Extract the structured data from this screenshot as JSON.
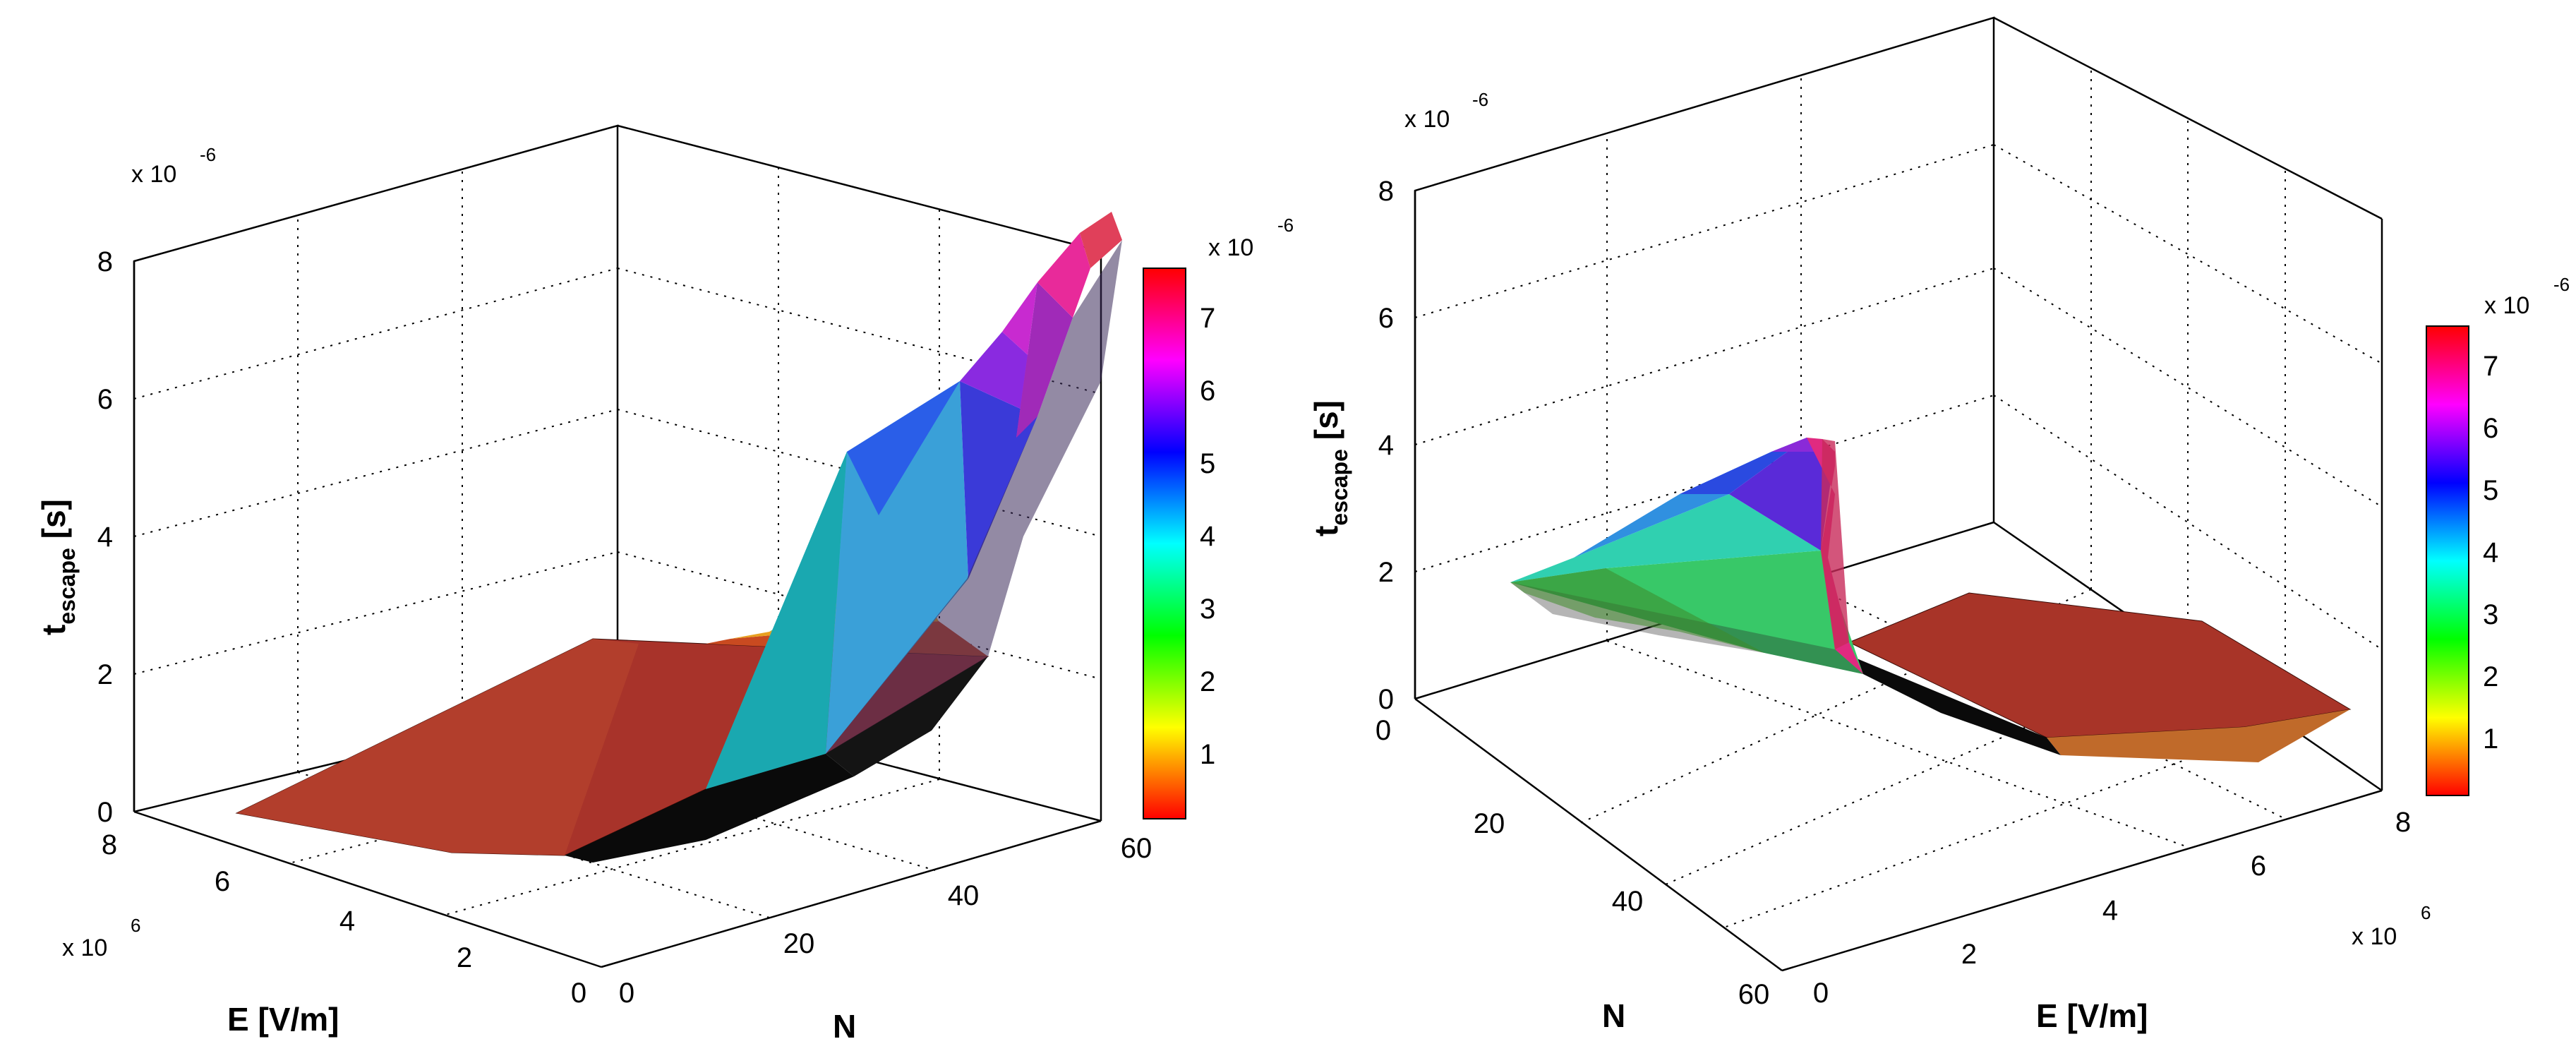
{
  "chart_data": [
    {
      "type": "surface3d",
      "view": "N axis toward front-right, E axis toward front-left",
      "xlabel": "N",
      "ylabel": "E [V/m]",
      "zlabel_main": "t",
      "zlabel_sub": "escape",
      "zlabel_unit": " [s]",
      "x_ticks": [
        "0",
        "20",
        "40",
        "60"
      ],
      "y_ticks": [
        "0",
        "2",
        "4",
        "6",
        "8"
      ],
      "z_ticks": [
        "0",
        "2",
        "4",
        "6",
        "8"
      ],
      "y_multiplier": {
        "base": "x 10",
        "exp": "6"
      },
      "z_multiplier": {
        "base": "x 10",
        "exp": "-6"
      },
      "xlim": [
        0,
        60
      ],
      "ylim": [
        0,
        8000000
      ],
      "zlim": [
        0,
        8e-06
      ],
      "grid": true,
      "colormap": "hsv",
      "colorbar": {
        "ticks": [
          "1",
          "2",
          "3",
          "4",
          "5",
          "6",
          "7"
        ],
        "multiplier": {
          "base": "x 10",
          "exp": "-6"
        },
        "range": [
          3e-07,
          7.4e-06
        ]
      },
      "surface": {
        "N_range": [
          1,
          55
        ],
        "E_range": [
          0,
          7000000
        ],
        "peak": {
          "N": 55,
          "E": 0,
          "t": 7.4e-06
        },
        "description_values": [
          {
            "N": 1,
            "E": 7000000,
            "t": 2e-07
          },
          {
            "N": 55,
            "E": 7000000,
            "t": 3e-07
          },
          {
            "N": 1,
            "E": 0,
            "t": 3e-07
          },
          {
            "N": 55,
            "E": 0,
            "t": 7.4e-06
          }
        ]
      }
    },
    {
      "type": "surface3d",
      "view": "E axis toward front-right, N axis toward front-left",
      "xlabel": "E [V/m]",
      "ylabel": "N",
      "zlabel_main": "t",
      "zlabel_sub": "escape",
      "zlabel_unit": " [s]",
      "x_ticks": [
        "0",
        "2",
        "4",
        "6",
        "8"
      ],
      "y_ticks": [
        "0",
        "20",
        "40",
        "60"
      ],
      "z_ticks": [
        "0",
        "2",
        "4",
        "6",
        "8"
      ],
      "x_multiplier": {
        "base": "x 10",
        "exp": "6"
      },
      "z_multiplier": {
        "base": "x 10",
        "exp": "-6"
      },
      "xlim": [
        0,
        8000000
      ],
      "ylim": [
        0,
        60
      ],
      "zlim": [
        0,
        8e-06
      ],
      "grid": true,
      "colormap": "hsv",
      "colorbar": {
        "ticks": [
          "1",
          "2",
          "3",
          "4",
          "5",
          "6",
          "7"
        ],
        "multiplier": {
          "base": "x 10",
          "exp": "-6"
        },
        "range": [
          3e-07,
          7.4e-06
        ]
      },
      "surface": {
        "N_range": [
          1,
          55
        ],
        "E_range": [
          0,
          7000000
        ],
        "peak": {
          "N": 55,
          "E": 0,
          "t": 7.4e-06
        }
      }
    }
  ]
}
